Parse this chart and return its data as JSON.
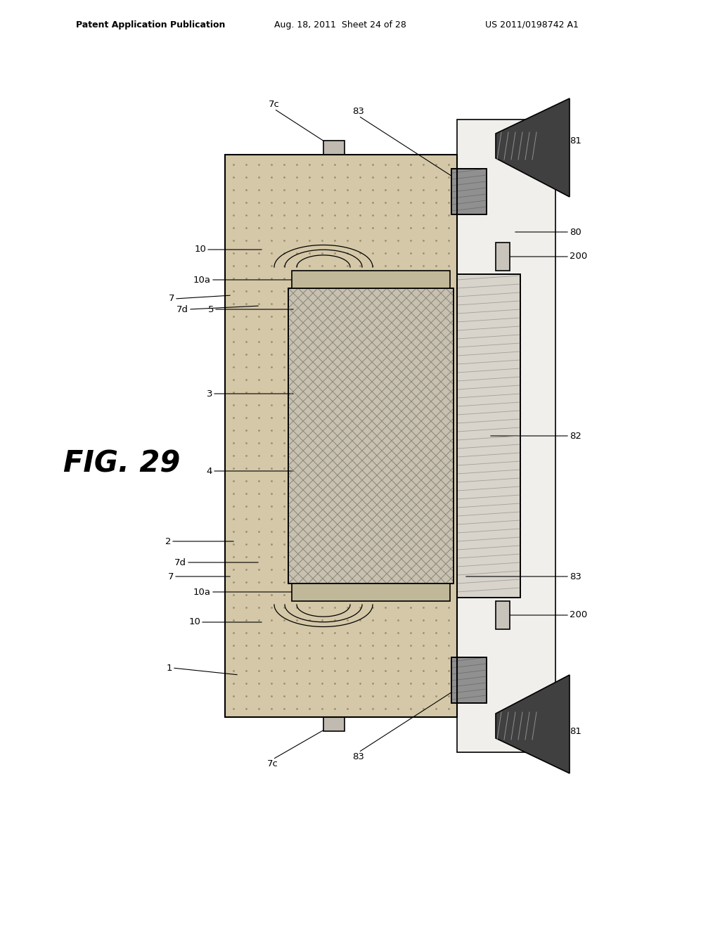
{
  "title_left": "Patent Application Publication",
  "title_mid": "Aug. 18, 2011  Sheet 24 of 28",
  "title_right": "US 2011/0198742 A1",
  "fig_label": "FIG. 29",
  "bg_color": "#ffffff",
  "line_color": "#000000",
  "dot_fill": "#d4c8a8",
  "light_fill": "#e8e4d8",
  "gray_fill": "#b0b0b0",
  "dark_fill": "#505050",
  "white_fill": "#ffffff",
  "hatch_gray": "#888880"
}
